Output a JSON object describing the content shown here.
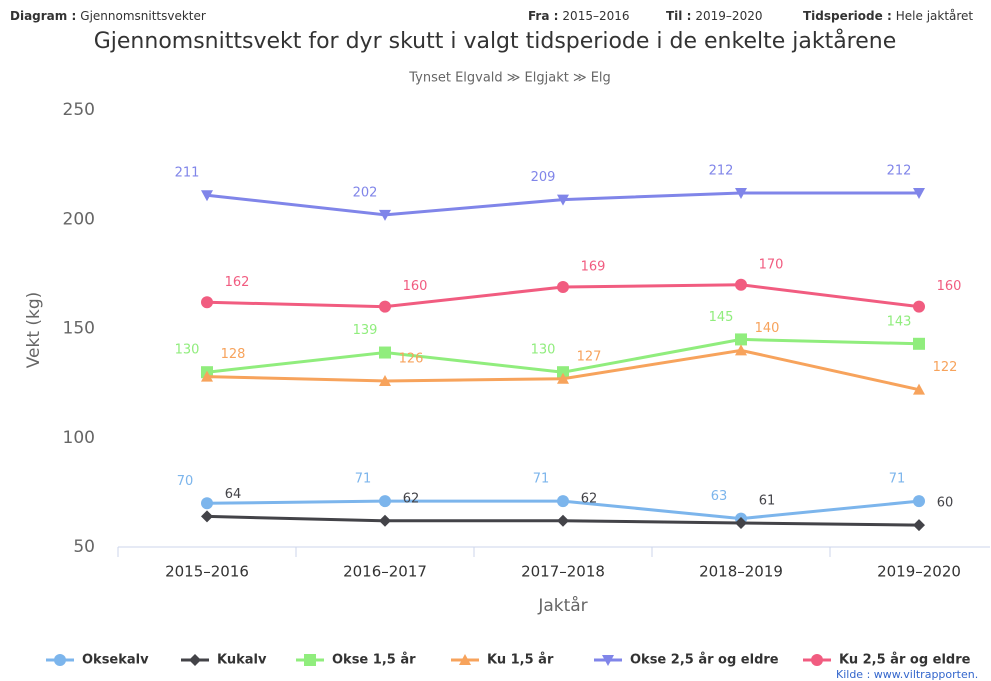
{
  "header": {
    "items": [
      {
        "label": "Diagram :",
        "value": "Gjennomsnittsvekter"
      },
      {
        "label": "Fra :",
        "value": "2015–2016"
      },
      {
        "label": "Til :",
        "value": "2019–2020"
      },
      {
        "label": "Tidsperiode :",
        "value": "Hele jaktåret"
      }
    ]
  },
  "chart_data": {
    "type": "line",
    "title": "Gjennomsnittsvekt for dyr skutt i valgt tidsperiode i de enkelte jaktårene",
    "subtitle": "Tynset Elgvald ≫ Elgjakt ≫ Elg",
    "y_label": "Vekt (kg)",
    "x_label": "Jaktår",
    "categories": [
      "2015–2016",
      "2016–2017",
      "2017–2018",
      "2018–2019",
      "2019–2020"
    ],
    "ylim": [
      50,
      250
    ],
    "yticks": [
      50,
      100,
      150,
      200,
      250
    ],
    "series": [
      {
        "name": "Oksekalv",
        "color": "#7cb5ec",
        "marker": "circle",
        "values": [
          70,
          71,
          71,
          63,
          71
        ]
      },
      {
        "name": "Kukalv",
        "color": "#434348",
        "marker": "diamond",
        "values": [
          64,
          62,
          62,
          61,
          60
        ]
      },
      {
        "name": "Okse 1,5 år",
        "color": "#90ed7d",
        "marker": "square",
        "values": [
          130,
          139,
          130,
          145,
          143
        ]
      },
      {
        "name": "Ku 1,5 år",
        "color": "#f7a35c",
        "marker": "triangle",
        "values": [
          128,
          126,
          127,
          140,
          122
        ]
      },
      {
        "name": "Okse 2,5 år og eldre",
        "color": "#8085e9",
        "marker": "triangle-down",
        "values": [
          211,
          202,
          209,
          212,
          212
        ]
      },
      {
        "name": "Ku 2,5 år og eldre",
        "color": "#f15c80",
        "marker": "circle",
        "values": [
          162,
          160,
          169,
          170,
          160
        ]
      }
    ],
    "source": "Kilde : www.viltrapporten."
  }
}
